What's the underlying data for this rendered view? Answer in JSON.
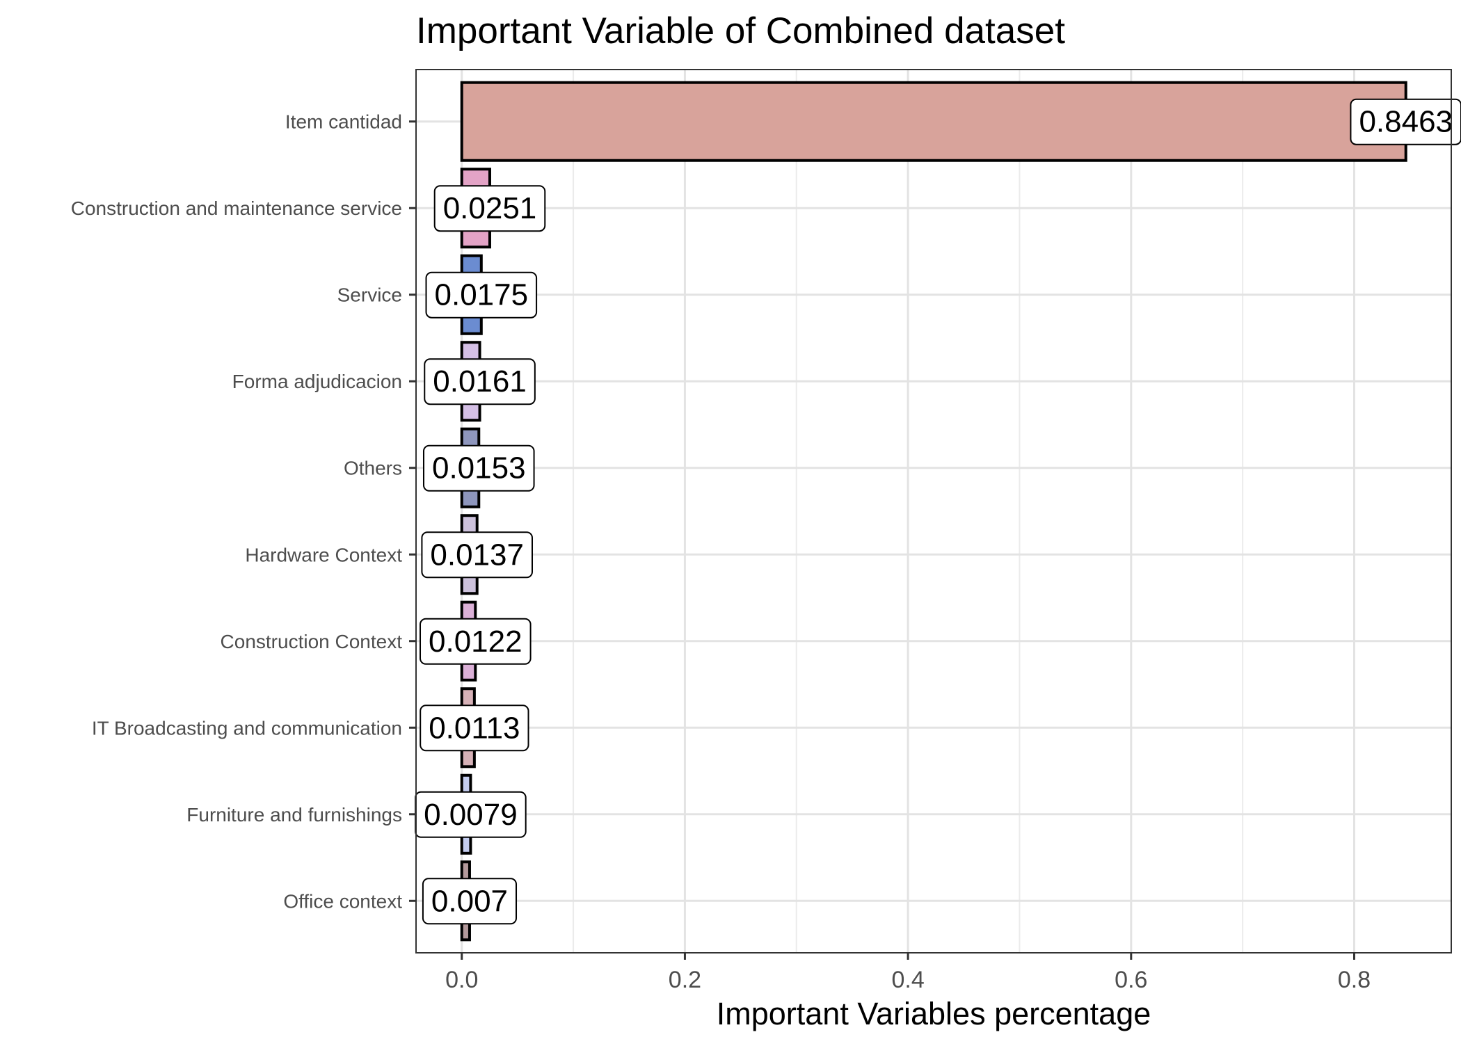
{
  "chart_data": {
    "type": "bar",
    "orientation": "horizontal",
    "title": "Important Variable of Combined dataset",
    "xlabel": "Important Variables percentage",
    "ylabel": "",
    "xlim": [
      -0.041,
      0.887
    ],
    "x_ticks": [
      "0.0",
      "0.2",
      "0.4",
      "0.6",
      "0.8"
    ],
    "x_tick_values": [
      0,
      0.2,
      0.4,
      0.6,
      0.8
    ],
    "grid": true,
    "legend": "none",
    "categories": [
      "Item cantidad",
      "Construction and maintenance service",
      "Service",
      "Forma adjudicacion",
      "Others",
      "Hardware Context",
      "Construction Context",
      "IT Broadcasting and communication",
      "Furniture and furnishings",
      "Office context"
    ],
    "values": [
      0.8463,
      0.0251,
      0.0175,
      0.0161,
      0.0153,
      0.0137,
      0.0122,
      0.0113,
      0.0079,
      0.007
    ],
    "labels": [
      "0.8463",
      "0.0251",
      "0.0175",
      "0.0161",
      "0.0153",
      "0.0137",
      "0.0122",
      "0.0113",
      "0.0079",
      "0.007"
    ],
    "colors": [
      "#d8a39b",
      "#e3a3c6",
      "#6b8cd1",
      "#d5c0e6",
      "#8e96bd",
      "#cdc2dc",
      "#dcb1d8",
      "#d6b1b7",
      "#c4cdf0",
      "#b3999b"
    ]
  }
}
